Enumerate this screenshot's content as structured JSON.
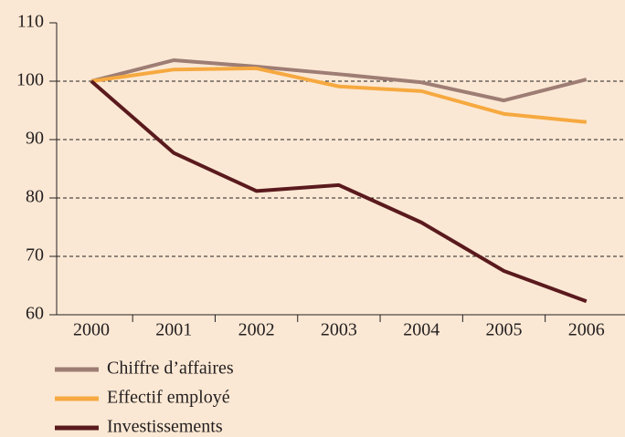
{
  "chart_data": {
    "type": "line",
    "categories": [
      "2000",
      "2001",
      "2002",
      "2003",
      "2004",
      "2005",
      "2006"
    ],
    "series": [
      {
        "name": "Chiffre d’affaires",
        "color": "#9d7d74",
        "values": [
          100,
          103.6,
          102.5,
          101.2,
          99.8,
          96.7,
          100.3
        ]
      },
      {
        "name": "Effectif employé",
        "color": "#f6a940",
        "values": [
          100,
          102.0,
          102.2,
          99.1,
          98.3,
          94.4,
          93.0
        ]
      },
      {
        "name": "Investissements",
        "color": "#5a1a1d",
        "values": [
          100,
          87.7,
          81.2,
          82.2,
          75.8,
          67.5,
          62.3
        ]
      }
    ],
    "ylim": [
      60,
      110
    ],
    "yticks": [
      60,
      70,
      80,
      90,
      100,
      110
    ],
    "grid": true,
    "legend": "bottom"
  }
}
